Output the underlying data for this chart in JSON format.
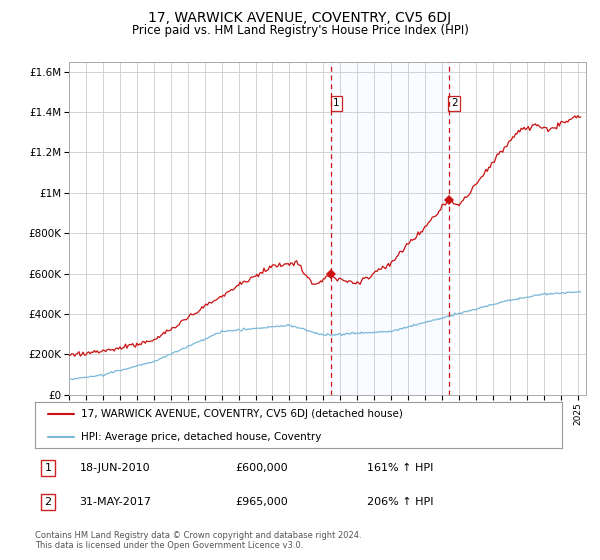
{
  "title": "17, WARWICK AVENUE, COVENTRY, CV5 6DJ",
  "subtitle": "Price paid vs. HM Land Registry's House Price Index (HPI)",
  "title_fontsize": 10,
  "subtitle_fontsize": 8.5,
  "ylim": [
    0,
    1650000
  ],
  "yticks": [
    0,
    200000,
    400000,
    600000,
    800000,
    1000000,
    1200000,
    1400000,
    1600000
  ],
  "ytick_labels": [
    "£0",
    "£200K",
    "£400K",
    "£600K",
    "£800K",
    "£1M",
    "£1.2M",
    "£1.4M",
    "£1.6M"
  ],
  "sale1_date": 2010.46,
  "sale1_price": 600000,
  "sale1_label": "1",
  "sale2_date": 2017.41,
  "sale2_price": 965000,
  "sale2_label": "2",
  "legend_entries": [
    "17, WARWICK AVENUE, COVENTRY, CV5 6DJ (detached house)",
    "HPI: Average price, detached house, Coventry"
  ],
  "sale1_date_str": "18-JUN-2010",
  "sale1_price_str": "£600,000",
  "sale1_hpi_str": "161% ↑ HPI",
  "sale2_date_str": "31-MAY-2017",
  "sale2_price_str": "£965,000",
  "sale2_hpi_str": "206% ↑ HPI",
  "footer_line1": "Contains HM Land Registry data © Crown copyright and database right 2024.",
  "footer_line2": "This data is licensed under the Open Government Licence v3.0.",
  "hpi_color": "#7ab8d9",
  "price_color": "#cc1111",
  "shade_color": "#ddeeff",
  "dashed_color": "#cc1111",
  "grid_color": "#cccccc",
  "box_edge_color": "#cc2222"
}
